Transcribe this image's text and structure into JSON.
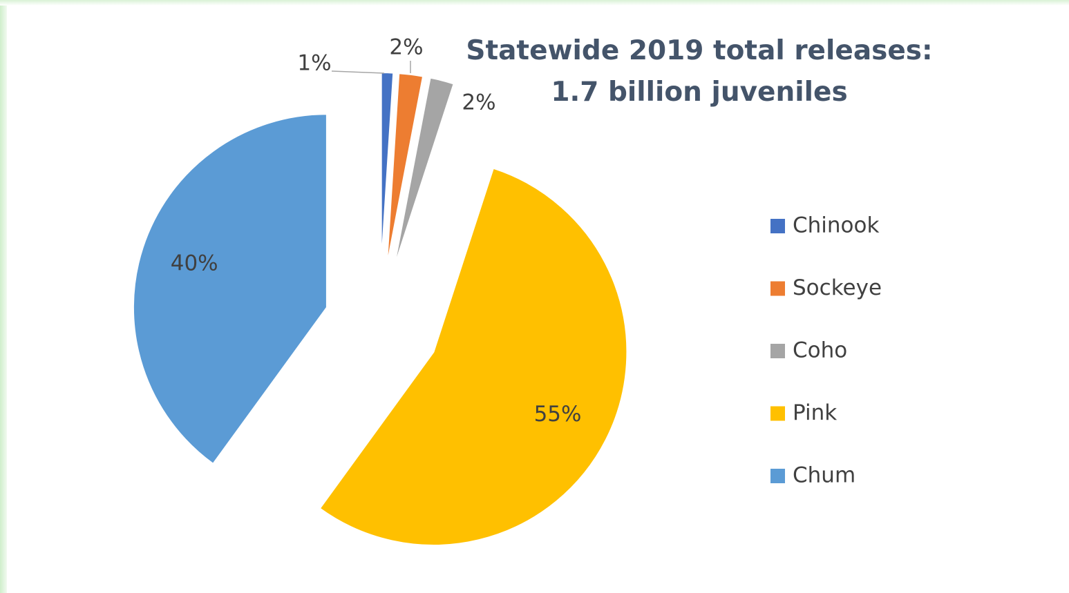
{
  "chart_data": {
    "type": "pie",
    "title": "Statewide 2019 total releases: 1.7 billion juveniles",
    "categories": [
      "Chinook",
      "Sockeye",
      "Coho",
      "Pink",
      "Chum"
    ],
    "values": [
      1,
      2,
      2,
      55,
      40
    ],
    "value_labels": [
      "1%",
      "2%",
      "2%",
      "55%",
      "40%"
    ],
    "colors": [
      "#4472c4",
      "#ed7d31",
      "#a5a5a5",
      "#ffc000",
      "#5b9bd5"
    ],
    "legend": "right"
  }
}
